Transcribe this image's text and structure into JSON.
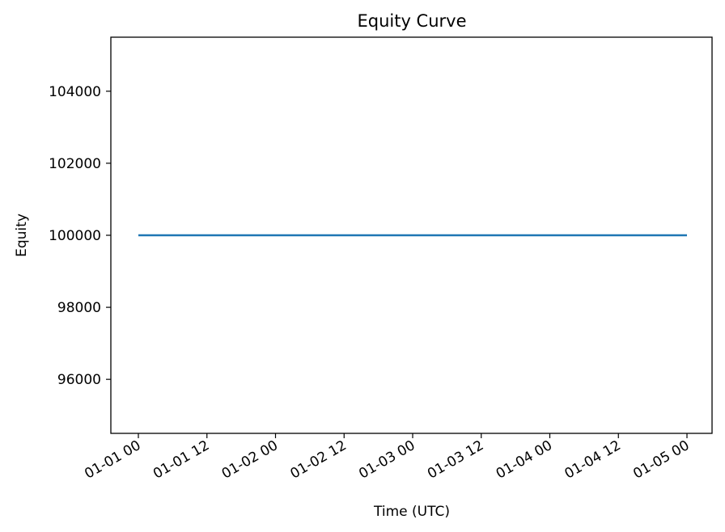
{
  "chart_data": {
    "type": "line",
    "title": "Equity Curve",
    "xlabel": "Time (UTC)",
    "ylabel": "Equity",
    "x_tick_labels": [
      "01-01 00",
      "01-01 12",
      "01-02 00",
      "01-02 12",
      "01-03 00",
      "01-03 12",
      "01-04 00",
      "01-04 12",
      "01-05 00"
    ],
    "y_ticks": [
      96000,
      98000,
      100000,
      102000,
      104000
    ],
    "ylim": [
      94500,
      105500
    ],
    "xlim": [
      "2000-12-31 22:50",
      "2001-01-05 03:40"
    ],
    "grid": false,
    "series": [
      {
        "color": "#1f77b4",
        "x": [
          "01-01 00",
          "01-05 00"
        ],
        "values": [
          100000,
          100000
        ]
      }
    ]
  }
}
